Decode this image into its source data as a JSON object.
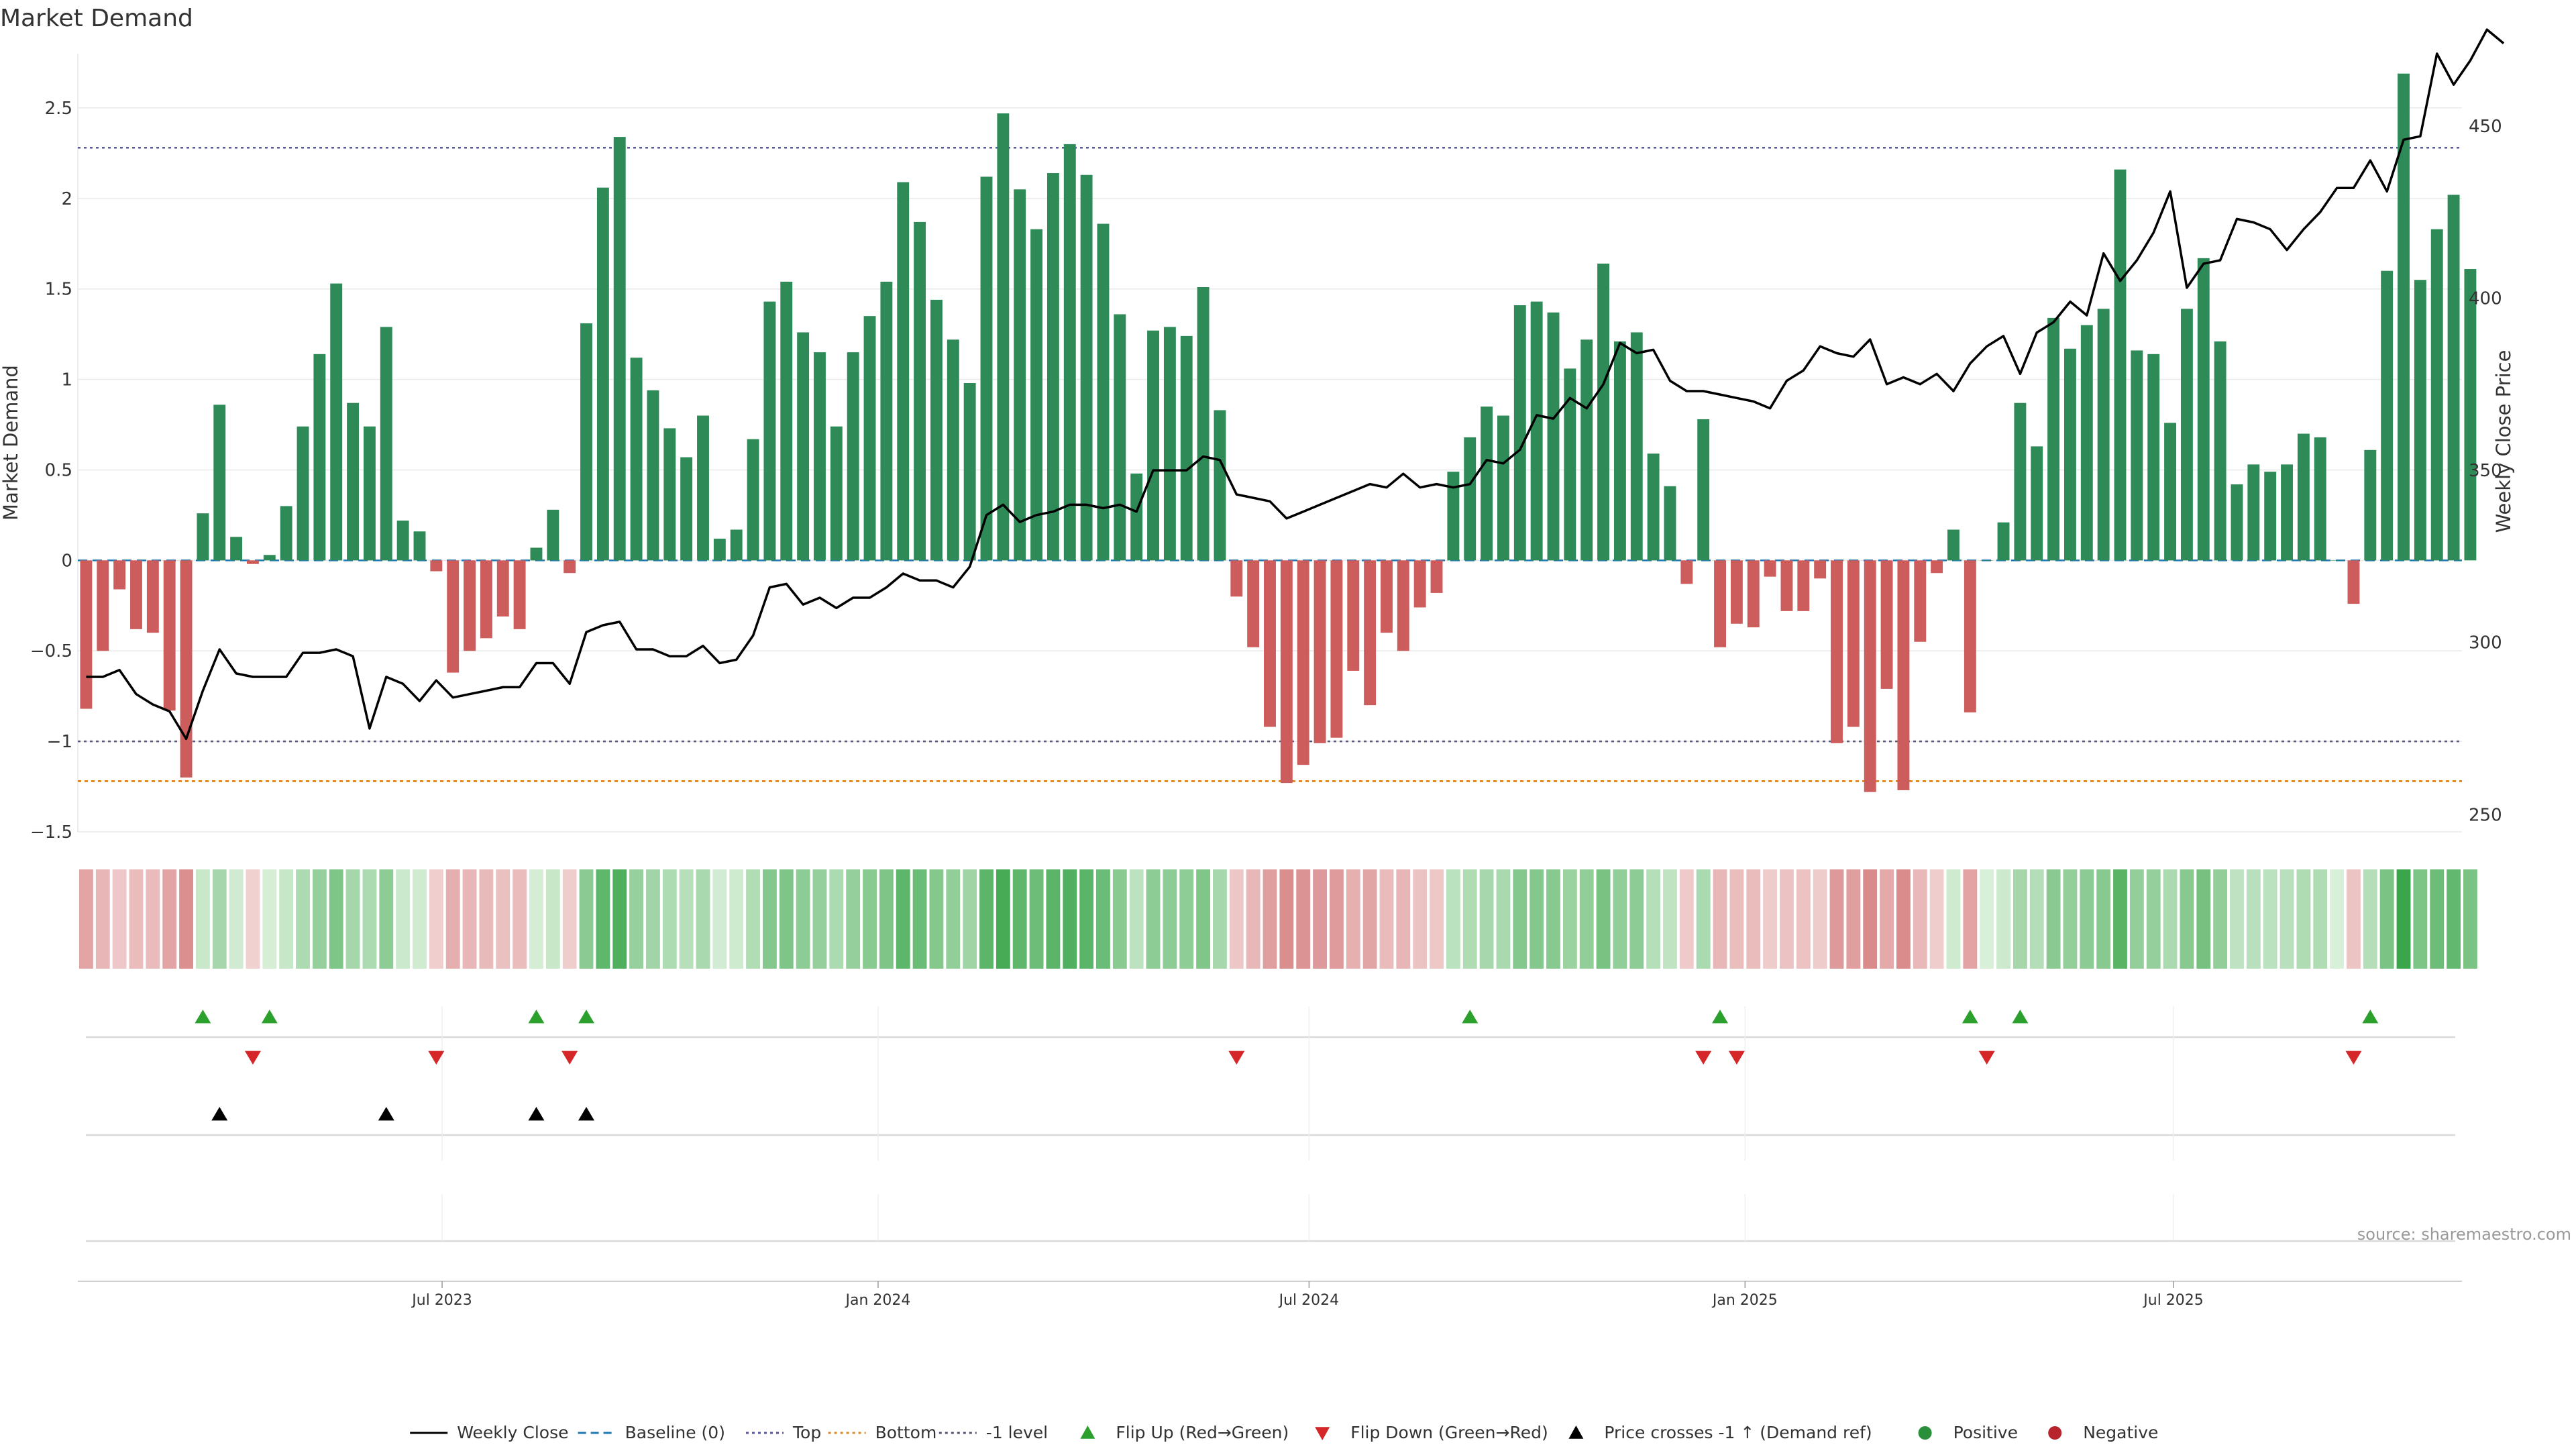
{
  "chart_data": {
    "type": "bar",
    "title": "Market Demand",
    "ylabel": "Market Demand",
    "y2label": "Weekly Close Price",
    "ylim": [
      -1.5,
      2.8
    ],
    "yticks": [
      -1.5,
      -1,
      -0.5,
      0,
      0.5,
      1,
      1.5,
      2,
      2.5
    ],
    "ytick_labels": [
      "−1.5",
      "−1",
      "−0.5",
      "0",
      "0.5",
      "1",
      "1.5",
      "2",
      "2.5"
    ],
    "y2lim": [
      245,
      471
    ],
    "y2ticks": [
      250,
      300,
      350,
      400,
      450
    ],
    "levels": {
      "top": 2.28,
      "bottom": -1.22,
      "minus_one": -1.0,
      "baseline": 0
    },
    "x_start": "2023-01-02",
    "x_step_days": 7,
    "x_domain_weeks": [
      0.0,
      143.0
    ],
    "xticks": [
      {
        "label": "Jul 2023",
        "week": 21.85
      },
      {
        "label": "Jan 2024",
        "week": 48.0
      },
      {
        "label": "Jul 2024",
        "week": 73.85
      },
      {
        "label": "Jan 2025",
        "week": 100.0
      },
      {
        "label": "Jul 2025",
        "week": 125.7
      }
    ],
    "demand": [
      -0.82,
      -0.5,
      -0.16,
      -0.38,
      -0.4,
      -0.83,
      -1.2,
      0.26,
      0.86,
      0.13,
      -0.02,
      0.03,
      0.3,
      0.74,
      1.14,
      1.53,
      0.87,
      0.74,
      1.29,
      0.22,
      0.16,
      -0.06,
      -0.62,
      -0.5,
      -0.43,
      -0.31,
      -0.38,
      0.07,
      0.28,
      -0.07,
      1.31,
      2.06,
      2.34,
      1.12,
      0.94,
      0.73,
      0.57,
      0.8,
      0.12,
      0.17,
      0.67,
      1.43,
      1.54,
      1.26,
      1.15,
      0.74,
      1.15,
      1.35,
      1.54,
      2.09,
      1.87,
      1.44,
      1.22,
      0.98,
      2.12,
      2.47,
      2.05,
      1.83,
      2.14,
      2.3,
      2.13,
      1.86,
      1.36,
      0.48,
      1.27,
      1.29,
      1.24,
      1.51,
      0.83,
      -0.2,
      -0.48,
      -0.92,
      -1.23,
      -1.13,
      -1.01,
      -0.98,
      -0.61,
      -0.8,
      -0.4,
      -0.5,
      -0.26,
      -0.18,
      0.49,
      0.68,
      0.85,
      0.8,
      1.41,
      1.43,
      1.37,
      1.06,
      1.22,
      1.64,
      1.21,
      1.26,
      0.59,
      0.41,
      -0.13,
      0.78,
      -0.48,
      -0.35,
      -0.37,
      -0.09,
      -0.28,
      -0.28,
      -0.1,
      -1.01,
      -0.92,
      -1.28,
      -0.71,
      -1.27,
      -0.45,
      -0.07,
      0.17,
      -0.84,
      0.0,
      0.21,
      0.87,
      0.63,
      1.34,
      1.17,
      1.3,
      1.39,
      2.16,
      1.16,
      1.14,
      0.76,
      1.39,
      1.67,
      1.21,
      0.42,
      0.53,
      0.49,
      0.53,
      0.7,
      0.68,
      0.0,
      -0.24,
      0.61,
      1.6,
      2.69,
      1.55,
      1.83,
      2.02,
      1.61
    ],
    "price": [
      290,
      290,
      292,
      285,
      282,
      280,
      272,
      286,
      298,
      291,
      290,
      290,
      290,
      297,
      297,
      298,
      296,
      275,
      290,
      288,
      283,
      289,
      284,
      285,
      286,
      287,
      287,
      294,
      294,
      288,
      303,
      305,
      306,
      298,
      298,
      296,
      296,
      299,
      294,
      295,
      302,
      316,
      317,
      311,
      313,
      310,
      313,
      313,
      316,
      320,
      318,
      318,
      316,
      322,
      337,
      340,
      335,
      337,
      338,
      340,
      340,
      339,
      340,
      338,
      350,
      350,
      350,
      354,
      353,
      343,
      342,
      341,
      336,
      338,
      340,
      342,
      344,
      346,
      345,
      349,
      345,
      346,
      345,
      346,
      353,
      352,
      356,
      366,
      365,
      371,
      368,
      375,
      387,
      384,
      385,
      376,
      373,
      373,
      372,
      371,
      370,
      368,
      376,
      379,
      386,
      384,
      383,
      388,
      375,
      377,
      375,
      378,
      373,
      381,
      386,
      389,
      378,
      390,
      393,
      399,
      395,
      413,
      405,
      411,
      419,
      431,
      403,
      410,
      411,
      423,
      422,
      420,
      414,
      420,
      425,
      432,
      432,
      440,
      431,
      446,
      447,
      471,
      462,
      469,
      478,
      474
    ],
    "flip_up": [
      7,
      11,
      27,
      30,
      83,
      98,
      113,
      116,
      137
    ],
    "flip_down": [
      10,
      21,
      29,
      69,
      97,
      99,
      114,
      136
    ],
    "price_cross": [
      8,
      18,
      27,
      30
    ],
    "source": "source: sharemaestro.com",
    "legend": [
      {
        "label": "Weekly Close",
        "marker": "solid-line",
        "color": "#000000"
      },
      {
        "label": "Baseline (0)",
        "marker": "dashed-line",
        "color": "#1f77b4"
      },
      {
        "label": "Top",
        "marker": "dotted-line",
        "color": "#5a5a9a"
      },
      {
        "label": "Bottom",
        "marker": "dotted-line",
        "color": "#e08a2e"
      },
      {
        "label": "-1 level",
        "marker": "dotted-line",
        "color": "#555577"
      },
      {
        "label": "Flip Up (Red→Green)",
        "marker": "triangle-up",
        "color": "#2ca02c"
      },
      {
        "label": "Flip Down (Green→Red)",
        "marker": "triangle-down",
        "color": "#d62728"
      },
      {
        "label": "Price crosses -1 ↑ (Demand ref)",
        "marker": "triangle-up",
        "color": "#000000"
      },
      {
        "label": "Positive",
        "marker": "circle",
        "color": "#2a8f3a"
      },
      {
        "label": "Negative",
        "marker": "circle",
        "color": "#b8242c"
      }
    ]
  },
  "colors": {
    "positive_bar": "#2e8b57",
    "negative_bar": "#cd5c5c",
    "top_line": "#5a5a9a",
    "bottom_line": "#e08a2e",
    "minus_one_line": "#555577",
    "baseline": "#1f77b4",
    "flip_up": "#2ca02c",
    "flip_down": "#d62728",
    "grid": "#eaeaea"
  }
}
